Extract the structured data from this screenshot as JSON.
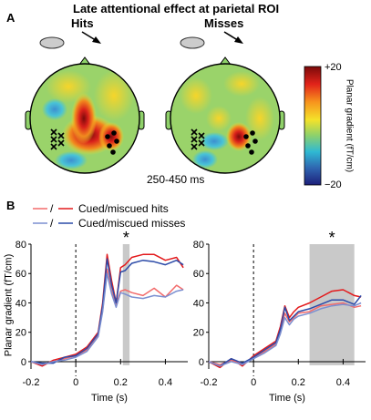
{
  "panel_a": {
    "panel_label": "A",
    "title": "Late attentional effect at parietal ROI",
    "left_label": "Hits",
    "right_label": "Misses",
    "time_window": "250-450 ms",
    "colorbar": {
      "max_label": "+20",
      "min_label": "−20",
      "title": "Planar gradient (fT/cm)",
      "colors": [
        "#7a0a0a",
        "#e2231a",
        "#f7941d",
        "#f4e22a",
        "#8fd16a",
        "#2fb9d3",
        "#2f64b0",
        "#1c1f7a"
      ]
    }
  },
  "panel_b": {
    "panel_label": "B",
    "legend": [
      {
        "name": "Cued/miscued hits",
        "colors": [
          "#f26b6b",
          "#e31a1c"
        ]
      },
      {
        "name": "Cued/miscued misses",
        "colors": [
          "#7b8fd0",
          "#2b4aa8"
        ]
      }
    ],
    "significance_marker": "*"
  },
  "chart_data": [
    {
      "type": "line",
      "title": "Hits",
      "xlabel": "Time (s)",
      "ylabel": "Planar gradient (fT/cm)",
      "xlim": [
        -0.2,
        0.5
      ],
      "ylim": [
        -5,
        80
      ],
      "xticks": [
        "-0.2",
        "0",
        "0.2",
        "0.4"
      ],
      "yticks": [
        "0",
        "20",
        "40",
        "60",
        "80"
      ],
      "significant_window": [
        0.21,
        0.24
      ],
      "stimulus_onset": 0,
      "x": [
        -0.2,
        -0.15,
        -0.1,
        -0.05,
        0,
        0.05,
        0.1,
        0.12,
        0.14,
        0.16,
        0.18,
        0.2,
        0.22,
        0.25,
        0.3,
        0.35,
        0.4,
        0.45,
        0.48
      ],
      "series": [
        {
          "name": "Cued hits",
          "color": "#e31a1c",
          "values": [
            0,
            -3,
            1,
            3,
            5,
            10,
            20,
            40,
            73,
            55,
            40,
            64,
            66,
            71,
            73,
            73,
            69,
            71,
            64
          ]
        },
        {
          "name": "Miscued hits",
          "color": "#f26b6b",
          "values": [
            0,
            -2,
            0,
            2,
            4,
            8,
            18,
            35,
            63,
            48,
            39,
            48,
            49,
            47,
            45,
            50,
            44,
            52,
            49
          ]
        },
        {
          "name": "Cued misses",
          "color": "#2b4aa8",
          "values": [
            0,
            -1,
            -1,
            3,
            4,
            9,
            19,
            38,
            70,
            52,
            40,
            61,
            62,
            67,
            69,
            68,
            66,
            69,
            66
          ]
        },
        {
          "name": "Miscued misses",
          "color": "#7b8fd0",
          "values": [
            0,
            -2,
            0,
            1,
            3,
            7,
            17,
            34,
            60,
            46,
            37,
            47,
            46,
            44,
            43,
            45,
            44,
            48,
            49
          ]
        }
      ]
    },
    {
      "type": "line",
      "title": "Misses",
      "xlabel": "Time (s)",
      "ylabel": "",
      "xlim": [
        -0.2,
        0.5
      ],
      "ylim": [
        -5,
        80
      ],
      "xticks": [
        "-0.2",
        "0",
        "0.2",
        "0.4"
      ],
      "yticks": [
        "0",
        "20",
        "40",
        "60",
        "80"
      ],
      "significant_window": [
        0.25,
        0.45
      ],
      "stimulus_onset": 0,
      "x": [
        -0.2,
        -0.15,
        -0.1,
        -0.05,
        0,
        0.05,
        0.1,
        0.12,
        0.14,
        0.16,
        0.18,
        0.2,
        0.25,
        0.3,
        0.35,
        0.4,
        0.45,
        0.48
      ],
      "series": [
        {
          "name": "Cued hits",
          "color": "#e31a1c",
          "values": [
            0,
            -4,
            2,
            -3,
            4,
            9,
            14,
            24,
            38,
            30,
            34,
            37,
            40,
            44,
            48,
            49,
            45,
            44
          ]
        },
        {
          "name": "Miscued hits",
          "color": "#f26b6b",
          "values": [
            0,
            -2,
            1,
            -2,
            3,
            7,
            12,
            21,
            33,
            27,
            30,
            33,
            34,
            38,
            39,
            40,
            37,
            38
          ]
        },
        {
          "name": "Cued misses",
          "color": "#2b4aa8",
          "values": [
            0,
            -3,
            2,
            -1,
            3,
            8,
            13,
            22,
            37,
            28,
            31,
            34,
            36,
            39,
            42,
            42,
            39,
            45
          ]
        },
        {
          "name": "Miscued misses",
          "color": "#7b8fd0",
          "values": [
            0,
            -3,
            0,
            -2,
            2,
            6,
            11,
            19,
            30,
            25,
            29,
            31,
            33,
            36,
            38,
            39,
            38,
            40
          ]
        }
      ]
    }
  ]
}
